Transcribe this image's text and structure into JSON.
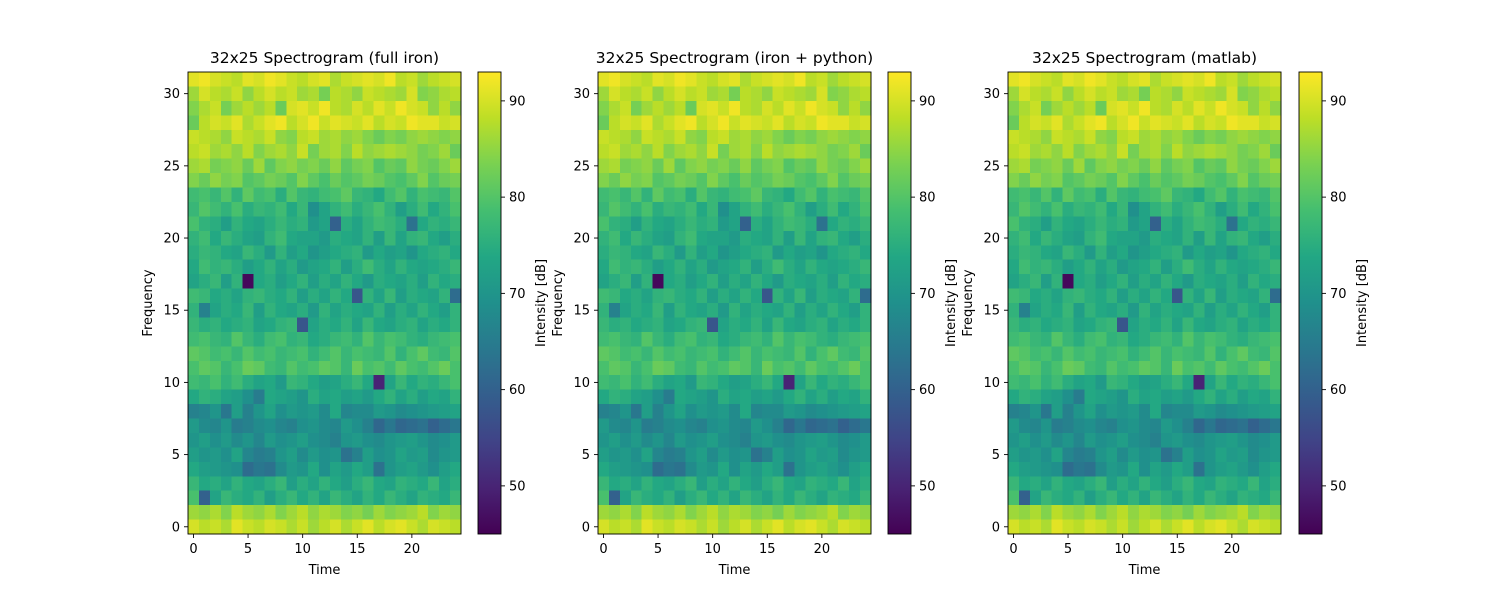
{
  "chart_data": [
    {
      "type": "heatmap",
      "title": "32x25 Spectrogram (full iron)",
      "xlabel": "Time",
      "ylabel": "Frequency",
      "colorbar_label": "Intensity [dB]",
      "n_time": 25,
      "n_freq": 32,
      "x_ticks": [
        0,
        5,
        10,
        15,
        20
      ],
      "y_ticks": [
        0,
        5,
        10,
        15,
        20,
        25,
        30
      ],
      "colorbar_ticks": [
        50,
        60,
        70,
        80,
        90
      ],
      "vmin": 45,
      "vmax": 93,
      "colormap": "viridis"
    },
    {
      "type": "heatmap",
      "title": "32x25 Spectrogram (iron + python)",
      "xlabel": "Time",
      "ylabel": "Frequency",
      "colorbar_label": "Intensity [dB]",
      "n_time": 25,
      "n_freq": 32,
      "x_ticks": [
        0,
        5,
        10,
        15,
        20
      ],
      "y_ticks": [
        0,
        5,
        10,
        15,
        20,
        25,
        30
      ],
      "colorbar_ticks": [
        50,
        60,
        70,
        80,
        90
      ],
      "vmin": 45,
      "vmax": 93,
      "colormap": "viridis"
    },
    {
      "type": "heatmap",
      "title": "32x25 Spectrogram (matlab)",
      "xlabel": "Time",
      "ylabel": "Frequency",
      "colorbar_label": "Intensity [dB]",
      "n_time": 25,
      "n_freq": 32,
      "x_ticks": [
        0,
        5,
        10,
        15,
        20
      ],
      "y_ticks": [
        0,
        5,
        10,
        15,
        20,
        25,
        30
      ],
      "colorbar_ticks": [
        50,
        60,
        70,
        80,
        90
      ],
      "vmin": 45,
      "vmax": 93,
      "colormap": "viridis"
    }
  ],
  "spectrogram_values": [
    [
      91,
      92,
      90,
      89,
      88,
      91,
      90,
      92,
      91,
      89,
      88,
      90,
      91,
      87,
      89,
      90,
      91,
      90,
      92,
      88,
      89,
      86,
      88,
      89,
      90
    ],
    [
      86,
      90,
      88,
      87,
      89,
      85,
      88,
      90,
      88,
      89,
      86,
      87,
      83,
      88,
      87,
      85,
      89,
      88,
      87,
      86,
      90,
      84,
      85,
      87,
      88
    ],
    [
      84,
      87,
      89,
      83,
      86,
      88,
      86,
      88,
      82,
      90,
      91,
      89,
      92,
      88,
      87,
      90,
      88,
      91,
      89,
      92,
      90,
      89,
      85,
      88,
      85
    ],
    [
      82,
      88,
      90,
      89,
      91,
      87,
      89,
      91,
      92,
      88,
      90,
      92,
      89,
      91,
      90,
      89,
      91,
      88,
      90,
      89,
      92,
      91,
      91,
      89,
      90
    ],
    [
      89,
      88,
      87,
      85,
      89,
      88,
      87,
      89,
      85,
      84,
      88,
      89,
      86,
      87,
      85,
      86,
      84,
      82,
      84,
      83,
      85,
      86,
      85,
      84,
      85
    ],
    [
      88,
      89,
      86,
      87,
      85,
      88,
      84,
      86,
      87,
      85,
      89,
      83,
      86,
      87,
      84,
      88,
      85,
      86,
      87,
      86,
      85,
      83,
      84,
      86,
      82
    ],
    [
      86,
      87,
      83,
      84,
      85,
      82,
      86,
      81,
      84,
      85,
      83,
      84,
      82,
      85,
      81,
      83,
      84,
      80,
      82,
      81,
      85,
      83,
      82,
      84,
      86
    ],
    [
      84,
      82,
      85,
      83,
      84,
      80,
      81,
      83,
      82,
      80,
      84,
      81,
      79,
      82,
      80,
      81,
      83,
      82,
      80,
      79,
      81,
      84,
      80,
      82,
      83
    ],
    [
      78,
      79,
      77,
      80,
      76,
      81,
      78,
      79,
      75,
      80,
      77,
      76,
      78,
      79,
      81,
      77,
      76,
      74,
      78,
      80,
      76,
      79,
      78,
      77,
      80
    ],
    [
      77,
      80,
      78,
      76,
      79,
      75,
      77,
      76,
      78,
      74,
      77,
      69,
      73,
      76,
      78,
      75,
      77,
      79,
      76,
      72,
      75,
      78,
      74,
      76,
      79
    ],
    [
      79,
      76,
      75,
      72,
      76,
      74,
      73,
      75,
      77,
      75,
      76,
      71,
      73,
      60,
      75,
      73,
      76,
      78,
      77,
      75,
      63,
      74,
      76,
      75,
      77
    ],
    [
      76,
      78,
      74,
      77,
      75,
      73,
      72,
      76,
      78,
      74,
      73,
      73,
      71,
      75,
      74,
      73,
      76,
      72,
      77,
      73,
      76,
      77,
      74,
      72,
      75
    ],
    [
      75,
      77,
      76,
      74,
      73,
      77,
      75,
      71,
      76,
      72,
      74,
      70,
      72,
      74,
      75,
      76,
      71,
      74,
      72,
      73,
      70,
      74,
      75,
      76,
      74
    ],
    [
      74,
      78,
      76,
      77,
      75,
      72,
      74,
      76,
      73,
      75,
      71,
      73,
      74,
      76,
      72,
      75,
      78,
      75,
      73,
      76,
      74,
      73,
      74,
      75,
      77
    ],
    [
      73,
      75,
      77,
      72,
      76,
      46,
      74,
      75,
      72,
      74,
      76,
      72,
      75,
      73,
      76,
      74,
      71,
      75,
      74,
      73,
      75,
      72,
      76,
      74,
      75
    ],
    [
      78,
      77,
      74,
      75,
      73,
      76,
      77,
      75,
      74,
      76,
      72,
      75,
      73,
      76,
      74,
      58,
      76,
      73,
      77,
      72,
      75,
      74,
      73,
      76,
      62
    ],
    [
      76,
      66,
      73,
      75,
      74,
      77,
      72,
      76,
      74,
      73,
      75,
      71,
      76,
      73,
      75,
      74,
      73,
      76,
      72,
      75,
      73,
      76,
      74,
      72,
      76
    ],
    [
      77,
      75,
      76,
      74,
      75,
      76,
      73,
      74,
      76,
      77,
      58,
      73,
      75,
      74,
      76,
      73,
      77,
      74,
      73,
      75,
      76,
      73,
      75,
      74,
      76
    ],
    [
      78,
      79,
      77,
      76,
      80,
      77,
      75,
      78,
      79,
      76,
      77,
      74,
      75,
      77,
      78,
      76,
      80,
      77,
      79,
      78,
      76,
      75,
      77,
      78,
      79
    ],
    [
      81,
      80,
      78,
      79,
      77,
      80,
      78,
      79,
      77,
      78,
      79,
      76,
      78,
      80,
      77,
      79,
      78,
      77,
      80,
      76,
      79,
      81,
      78,
      77,
      80
    ],
    [
      79,
      81,
      80,
      77,
      79,
      82,
      81,
      78,
      77,
      80,
      78,
      79,
      81,
      80,
      77,
      82,
      79,
      80,
      78,
      81,
      79,
      78,
      80,
      82,
      79
    ],
    [
      78,
      77,
      79,
      76,
      78,
      75,
      73,
      74,
      71,
      77,
      76,
      74,
      72,
      73,
      75,
      77,
      74,
      50,
      73,
      77,
      74,
      76,
      75,
      77,
      79
    ],
    [
      74,
      76,
      75,
      73,
      72,
      69,
      65,
      74,
      73,
      72,
      70,
      75,
      73,
      74,
      72,
      73,
      71,
      74,
      76,
      73,
      75,
      72,
      74,
      73,
      76
    ],
    [
      66,
      67,
      70,
      64,
      72,
      66,
      70,
      73,
      69,
      71,
      70,
      71,
      68,
      74,
      67,
      68,
      68,
      71,
      70,
      68,
      69,
      70,
      71,
      72,
      73
    ],
    [
      71,
      68,
      67,
      70,
      65,
      66,
      68,
      69,
      67,
      66,
      69,
      70,
      68,
      67,
      71,
      69,
      66,
      61,
      64,
      61,
      62,
      63,
      60,
      62,
      64
    ],
    [
      70,
      72,
      69,
      71,
      68,
      70,
      67,
      71,
      69,
      70,
      72,
      69,
      68,
      66,
      70,
      71,
      69,
      68,
      70,
      71,
      72,
      70,
      68,
      69,
      71
    ],
    [
      72,
      70,
      71,
      69,
      73,
      67,
      65,
      66,
      70,
      72,
      68,
      71,
      69,
      70,
      63,
      66,
      72,
      69,
      70,
      73,
      71,
      72,
      68,
      70,
      71
    ],
    [
      74,
      72,
      71,
      70,
      69,
      62,
      64,
      63,
      68,
      71,
      70,
      74,
      69,
      73,
      71,
      74,
      72,
      63,
      70,
      72,
      73,
      71,
      69,
      72,
      74
    ],
    [
      77,
      74,
      75,
      73,
      76,
      74,
      73,
      75,
      77,
      72,
      75,
      73,
      76,
      74,
      72,
      75,
      77,
      74,
      73,
      76,
      75,
      74,
      77,
      73,
      75
    ],
    [
      79,
      60,
      73,
      77,
      75,
      74,
      76,
      72,
      75,
      77,
      74,
      76,
      73,
      77,
      75,
      73,
      76,
      74,
      77,
      75,
      73,
      76,
      75,
      74,
      77
    ],
    [
      86,
      85,
      87,
      84,
      88,
      86,
      85,
      87,
      84,
      86,
      88,
      85,
      87,
      86,
      84,
      85,
      83,
      86,
      84,
      85,
      86,
      88,
      84,
      86,
      85
    ],
    [
      90,
      88,
      89,
      87,
      91,
      89,
      88,
      90,
      89,
      87,
      89,
      86,
      88,
      90,
      87,
      89,
      91,
      88,
      90,
      91,
      89,
      87,
      90,
      89,
      88
    ]
  ]
}
